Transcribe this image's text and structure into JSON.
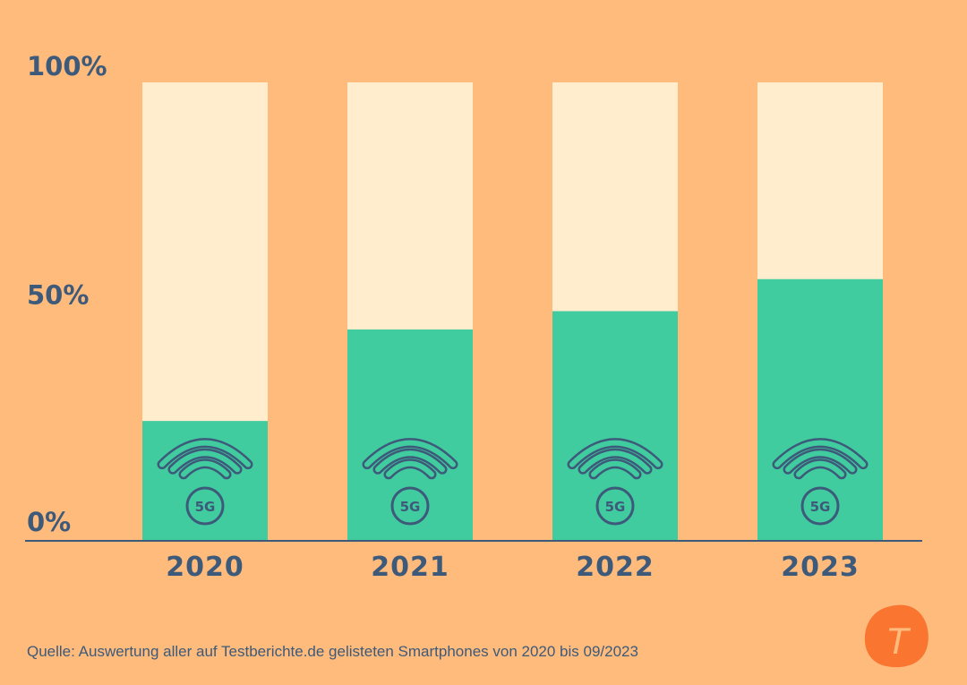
{
  "chart_data": {
    "type": "bar",
    "stacked_percent": true,
    "categories": [
      "2020",
      "2021",
      "2022",
      "2023"
    ],
    "series": [
      {
        "name": "5G",
        "values": [
          26,
          46,
          50,
          57
        ]
      }
    ],
    "ylim": [
      0,
      100
    ],
    "yticks": [
      "0%",
      "50%",
      "100%"
    ],
    "ytick_values": [
      0,
      50,
      100
    ],
    "colors": {
      "bar": "#41CC9F",
      "remainder": "#FFEDCD",
      "text": "#3D5A7A",
      "background": "#FFBB7C",
      "logo": "#F97530"
    },
    "icon": "wifi-5g-icon",
    "icon_label": "5G"
  },
  "source": "Quelle: Auswertung aller auf Testberichte.de gelisteten Smartphones von 2020 bis 09/2023",
  "logo": {
    "letter": "T"
  }
}
